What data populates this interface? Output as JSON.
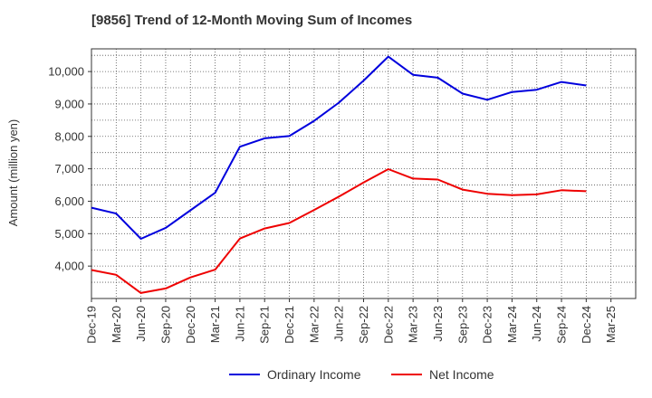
{
  "chart_data": {
    "type": "line",
    "title": "[9856]  Trend of 12-Month Moving Sum of Incomes",
    "xlabel": "",
    "ylabel": "Amount (million yen)",
    "ylim": [
      3000,
      10700
    ],
    "yticks": [
      4000,
      5000,
      6000,
      7000,
      8000,
      9000,
      10000
    ],
    "ytick_labels": [
      "4,000",
      "5,000",
      "6,000",
      "7,000",
      "8,000",
      "9,000",
      "10,000"
    ],
    "categories": [
      "Dec-19",
      "Mar-20",
      "Jun-20",
      "Sep-20",
      "Dec-20",
      "Mar-21",
      "Jun-21",
      "Sep-21",
      "Dec-21",
      "Mar-22",
      "Jun-22",
      "Sep-22",
      "Dec-22",
      "Mar-23",
      "Jun-23",
      "Sep-23",
      "Dec-23",
      "Mar-24",
      "Jun-24",
      "Sep-24",
      "Dec-24",
      "Mar-25"
    ],
    "grid": true,
    "legend_position": "bottom",
    "series": [
      {
        "name": "Ordinary Income",
        "color": "#0000dd",
        "values": [
          5800,
          5620,
          4840,
          5180,
          5720,
          6260,
          7680,
          7940,
          8010,
          8480,
          9040,
          9720,
          10460,
          9900,
          9810,
          9320,
          9130,
          9370,
          9440,
          9680,
          9570,
          null
        ]
      },
      {
        "name": "Net Income",
        "color": "#ee0000",
        "values": [
          3880,
          3730,
          3170,
          3310,
          3650,
          3890,
          4850,
          5160,
          5330,
          5730,
          6140,
          6580,
          6990,
          6700,
          6670,
          6360,
          6230,
          6190,
          6210,
          6340,
          6310,
          null
        ]
      }
    ]
  }
}
